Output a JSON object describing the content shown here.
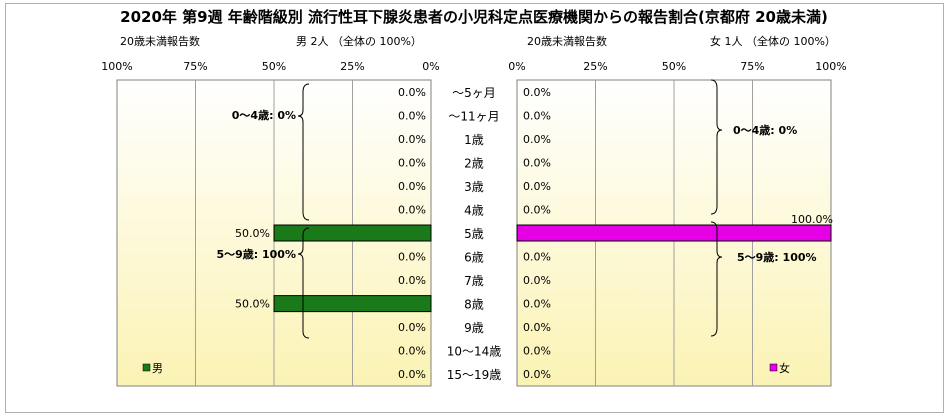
{
  "title": "2020年 第9週 年齢階級別 流行性耳下腺炎患者の小児科定点医療機関からの報告割合(京都府 20歳未満)",
  "male": {
    "subtitle_left": "20歳未満報告数",
    "subtitle_right": "男  2人 （全体の  100%）",
    "legend": "男",
    "color": "#1a7a1a",
    "group_labels": [
      "0～4歳: 0%",
      "5～9歳: 100%"
    ]
  },
  "female": {
    "subtitle_left": "20歳未満報告数",
    "subtitle_right": "女  1人 （全体の  100%）",
    "legend": "女",
    "color": "#e600e6",
    "group_labels": [
      "0～4歳: 0%",
      "5～9歳: 100%"
    ]
  },
  "chart_data": [
    {
      "type": "bar",
      "orientation": "horizontal",
      "direction": "right-to-left",
      "series": [
        {
          "name": "男",
          "values": [
            0.0,
            0.0,
            0.0,
            0.0,
            0.0,
            0.0,
            50.0,
            0.0,
            0.0,
            50.0,
            0.0,
            0.0,
            0.0
          ]
        }
      ],
      "categories": [
        "～5ヶ月",
        "～11ヶ月",
        "1歳",
        "2歳",
        "3歳",
        "4歳",
        "5歳",
        "6歳",
        "7歳",
        "8歳",
        "9歳",
        "10～14歳",
        "15～19歳"
      ],
      "data_labels": [
        "0.0%",
        "0.0%",
        "0.0%",
        "0.0%",
        "0.0%",
        "0.0%",
        "50.0%",
        "0.0%",
        "0.0%",
        "50.0%",
        "0.0%",
        "0.0%",
        "0.0%"
      ],
      "xlim": [
        0,
        100
      ],
      "tick_labels": [
        "100%",
        "75%",
        "50%",
        "25%",
        "0%"
      ],
      "grid": "vertical",
      "legend_placement": "bottom-left"
    },
    {
      "type": "bar",
      "orientation": "horizontal",
      "direction": "left-to-right",
      "series": [
        {
          "name": "女",
          "values": [
            0.0,
            0.0,
            0.0,
            0.0,
            0.0,
            0.0,
            100.0,
            0.0,
            0.0,
            0.0,
            0.0,
            0.0,
            0.0
          ]
        }
      ],
      "categories": [
        "～5ヶ月",
        "～11ヶ月",
        "1歳",
        "2歳",
        "3歳",
        "4歳",
        "5歳",
        "6歳",
        "7歳",
        "8歳",
        "9歳",
        "10～14歳",
        "15～19歳"
      ],
      "data_labels": [
        "0.0%",
        "0.0%",
        "0.0%",
        "0.0%",
        "0.0%",
        "0.0%",
        "100.0%",
        "0.0%",
        "0.0%",
        "0.0%",
        "0.0%",
        "0.0%",
        "0.0%"
      ],
      "xlim": [
        0,
        100
      ],
      "tick_labels": [
        "0%",
        "25%",
        "50%",
        "75%",
        "100%"
      ],
      "grid": "vertical",
      "legend_placement": "bottom-right"
    }
  ]
}
